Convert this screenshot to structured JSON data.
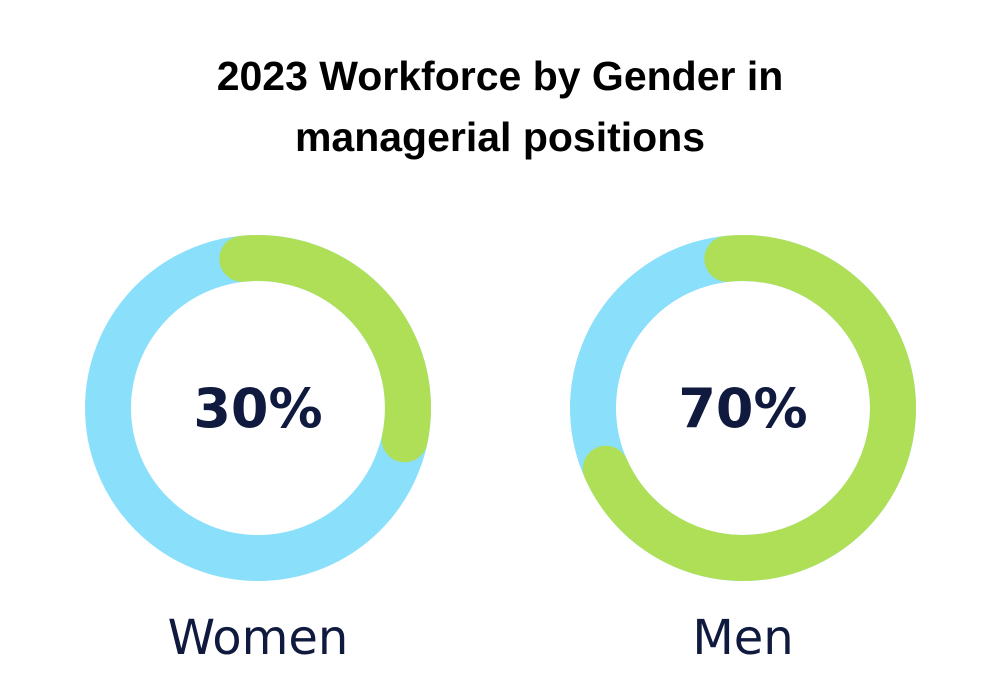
{
  "chart_data": {
    "type": "pie",
    "title_lines": [
      "2023 Workforce by Gender in",
      "managerial positions"
    ],
    "slices": [
      {
        "label": "Women",
        "value": 30,
        "value_label": "30%"
      },
      {
        "label": "Men",
        "value": 70,
        "value_label": "70%"
      }
    ],
    "colors": {
      "track": "#8adffb",
      "highlight": "#afdf57",
      "text": "#0f1a3e"
    }
  }
}
